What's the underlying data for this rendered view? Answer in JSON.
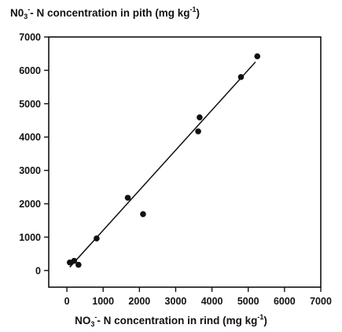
{
  "chart_data": {
    "type": "scatter",
    "ylabel": {
      "pre": "N0",
      "sub": "3",
      "sup1": "-",
      "mid": "- N concentration in pith (mg kg",
      "sup2": "-1",
      "post": ")"
    },
    "xlabel": {
      "pre": "NO",
      "sub": "3",
      "sup1": "-",
      "mid": "- N concentration in rind (mg kg",
      "sup2": "-1",
      "post": ")"
    },
    "xlim": [
      -500,
      7000
    ],
    "ylim": [
      -500,
      7000
    ],
    "xticks": [
      0,
      1000,
      2000,
      3000,
      4000,
      5000,
      6000,
      7000
    ],
    "yticks": [
      0,
      1000,
      2000,
      3000,
      4000,
      5000,
      6000,
      7000
    ],
    "xtick_labels": [
      "0",
      "1000",
      "2000",
      "3000",
      "4000",
      "5000",
      "6000",
      "7000"
    ],
    "ytick_labels": [
      "0",
      "1000",
      "2000",
      "3000",
      "4000",
      "5000",
      "6000",
      "7000"
    ],
    "points": [
      {
        "x": 80,
        "y": 240
      },
      {
        "x": 200,
        "y": 290
      },
      {
        "x": 320,
        "y": 170
      },
      {
        "x": 820,
        "y": 960
      },
      {
        "x": 1680,
        "y": 2180
      },
      {
        "x": 2100,
        "y": 1690
      },
      {
        "x": 3620,
        "y": 4170
      },
      {
        "x": 3660,
        "y": 4590
      },
      {
        "x": 4800,
        "y": 5800
      },
      {
        "x": 5250,
        "y": 6420
      }
    ],
    "fit_line": {
      "x": [
        80,
        5200
      ],
      "y": [
        100,
        6250
      ]
    },
    "grid": false,
    "colors": {
      "marker": "#111111",
      "line": "#111111"
    }
  }
}
